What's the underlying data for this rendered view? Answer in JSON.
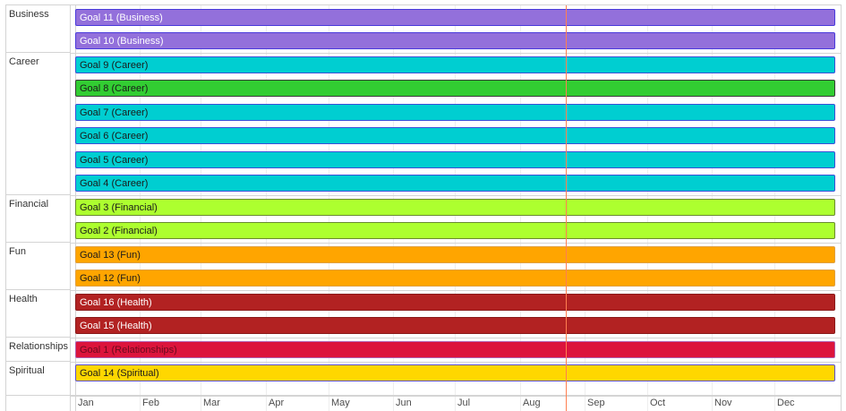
{
  "groups": [
    {
      "label": "Business",
      "items": [
        {
          "label": "Goal 11 (Business)",
          "bg": "#9370DB",
          "border": "#4a3bdc",
          "text": "#ffffff"
        },
        {
          "label": "Goal 10 (Business)",
          "bg": "#9370DB",
          "border": "#4a3bdc",
          "text": "#ffffff"
        }
      ]
    },
    {
      "label": "Career",
      "items": [
        {
          "label": "Goal 9 (Career)",
          "bg": "#00CED1",
          "border": "#3b4fd8",
          "text": "#1a1a1a"
        },
        {
          "label": "Goal 8 (Career)",
          "bg": "#32CD32",
          "border": "#3a3a3a",
          "text": "#1a1a1a"
        },
        {
          "label": "Goal 7 (Career)",
          "bg": "#00CED1",
          "border": "#3b4fd8",
          "text": "#1a1a1a"
        },
        {
          "label": "Goal 6 (Career)",
          "bg": "#00CED1",
          "border": "#3b4fd8",
          "text": "#1a1a1a"
        },
        {
          "label": "Goal 5 (Career)",
          "bg": "#00CED1",
          "border": "#3b4fd8",
          "text": "#1a1a1a"
        },
        {
          "label": "Goal 4 (Career)",
          "bg": "#00CED1",
          "border": "#3b4fd8",
          "text": "#1a1a1a"
        }
      ]
    },
    {
      "label": "Financial",
      "items": [
        {
          "label": "Goal 3 (Financial)",
          "bg": "#ADFF2F",
          "border": "#6a8a30",
          "text": "#1a1a1a"
        },
        {
          "label": "Goal 2 (Financial)",
          "bg": "#ADFF2F",
          "border": "#6a8a30",
          "text": "#1a1a1a"
        }
      ]
    },
    {
      "label": "Fun",
      "items": [
        {
          "label": "Goal 13 (Fun)",
          "bg": "#FFA500",
          "border": "#e0a040",
          "text": "#1a1a1a"
        },
        {
          "label": "Goal 12 (Fun)",
          "bg": "#FFA500",
          "border": "#e0a040",
          "text": "#1a1a1a"
        }
      ]
    },
    {
      "label": "Health",
      "items": [
        {
          "label": "Goal 16 (Health)",
          "bg": "#B22222",
          "border": "#8a1a1a",
          "text": "#ffffff"
        },
        {
          "label": "Goal 15 (Health)",
          "bg": "#B22222",
          "border": "#8a1a1a",
          "text": "#ffffff"
        }
      ]
    },
    {
      "label": "Relationships",
      "items": [
        {
          "label": "Goal 1 (Relationships)",
          "bg": "#DC143C",
          "border": "#b060b0",
          "text": "#6b0a1e"
        }
      ]
    },
    {
      "label": "Spiritual",
      "items": [
        {
          "label": "Goal 14 (Spiritual)",
          "bg": "#FFD700",
          "border": "#5a4fd0",
          "text": "#1a1a1a"
        }
      ]
    }
  ],
  "axis": {
    "months": [
      "Jan",
      "Feb",
      "Mar",
      "Apr",
      "May",
      "Jun",
      "Jul",
      "Aug",
      "Sep",
      "Oct",
      "Nov",
      "Dec"
    ]
  },
  "current_time_color": "#ff7f50"
}
